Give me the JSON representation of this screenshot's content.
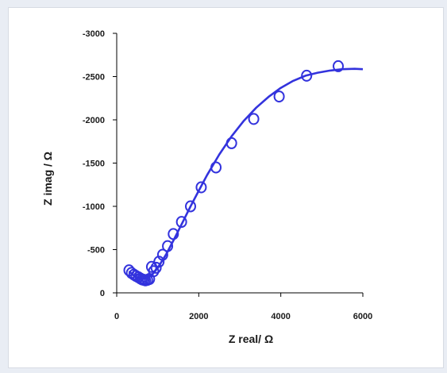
{
  "chart_data": {
    "type": "scatter",
    "xlabel": "Z real/ Ω",
    "ylabel": "Z imag / Ω",
    "xlim": [
      0,
      6000
    ],
    "ylim": [
      0,
      -3000
    ],
    "x_ticks": [
      "0",
      "2000",
      "4000",
      "6000"
    ],
    "y_ticks": [
      "-3000",
      "-2500",
      "-2000",
      "-1500",
      "-1000",
      "-500",
      "0"
    ],
    "grid": false,
    "legend": "none",
    "colors": {
      "series": "#3333dd",
      "axis": "#000000"
    },
    "series": [
      {
        "kind": "points",
        "marker": "open-circle",
        "x": [
          300,
          360,
          420,
          470,
          530,
          580,
          620,
          660,
          700,
          750,
          800,
          850,
          900,
          960,
          1030,
          1120,
          1240,
          1380,
          1580,
          1800,
          2060,
          2420,
          2800,
          3340,
          3960,
          4630,
          5400
        ],
        "y": [
          -260,
          -230,
          -210,
          -195,
          -180,
          -165,
          -155,
          -150,
          -145,
          -150,
          -160,
          -300,
          -250,
          -290,
          -360,
          -440,
          -540,
          -680,
          -820,
          -1000,
          -1220,
          -1450,
          -1730,
          -2010,
          -2270,
          -2510,
          -2620
        ]
      },
      {
        "kind": "line",
        "x": [
          300,
          400,
          500,
          600,
          700,
          800,
          900,
          1000,
          1200,
          1400,
          1600,
          1800,
          2000,
          2200,
          2500,
          2800,
          3100,
          3400,
          3700,
          4000,
          4300,
          4600,
          4900,
          5200,
          5500,
          5800,
          6000
        ],
        "y": [
          -250,
          -205,
          -175,
          -160,
          -165,
          -185,
          -230,
          -290,
          -440,
          -620,
          -810,
          -1000,
          -1180,
          -1360,
          -1600,
          -1810,
          -1990,
          -2140,
          -2265,
          -2370,
          -2450,
          -2510,
          -2545,
          -2570,
          -2585,
          -2590,
          -2585
        ]
      }
    ]
  }
}
